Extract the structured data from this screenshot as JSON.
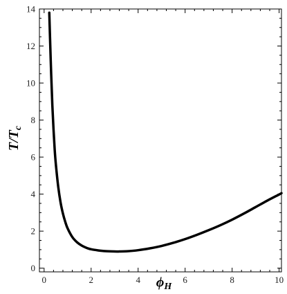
{
  "chart_data": {
    "type": "line",
    "xlabel": "ϕ",
    "xlabel_sub": "H",
    "ylabel": "T/T",
    "ylabel_sub": "c",
    "xlim": [
      -0.2,
      10.1
    ],
    "ylim": [
      -0.2,
      14
    ],
    "xticks": [
      0,
      2,
      4,
      6,
      8,
      10
    ],
    "yticks": [
      0,
      2,
      4,
      6,
      8,
      10,
      12,
      14
    ],
    "grid": false,
    "series": [
      {
        "color": "#000000",
        "x": [
          0.22,
          0.25,
          0.3,
          0.35,
          0.4,
          0.45,
          0.5,
          0.6,
          0.7,
          0.8,
          0.9,
          1.0,
          1.2,
          1.4,
          1.6,
          1.8,
          2.0,
          2.3,
          2.6,
          3.0,
          3.2,
          3.5,
          4.0,
          4.5,
          5.0,
          5.5,
          6.0,
          6.5,
          7.0,
          7.5,
          8.0,
          8.5,
          9.0,
          9.5,
          10.0,
          10.1
        ],
        "y": [
          13.8,
          12.5,
          10.5,
          8.8,
          7.5,
          6.4,
          5.6,
          4.4,
          3.55,
          2.95,
          2.5,
          2.15,
          1.68,
          1.4,
          1.22,
          1.1,
          1.02,
          0.96,
          0.92,
          0.9,
          0.9,
          0.91,
          0.97,
          1.07,
          1.2,
          1.37,
          1.57,
          1.8,
          2.05,
          2.32,
          2.62,
          2.95,
          3.3,
          3.65,
          3.98,
          4.05
        ]
      }
    ]
  }
}
